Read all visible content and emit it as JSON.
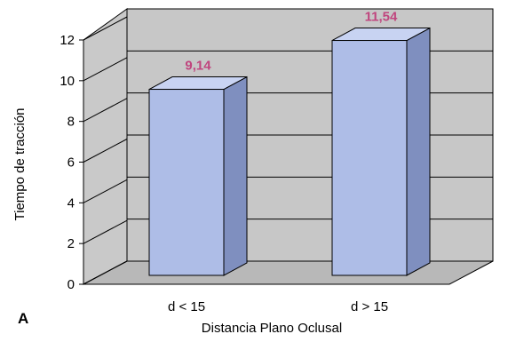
{
  "panel_label": "A",
  "colors": {
    "bar_front": "#aebde7",
    "bar_side": "#7f8fbf",
    "bar_top": "#c8d3f2",
    "wall": "#c7c7c7",
    "floor": "#b8b8b8",
    "data_label": "#c0457e"
  },
  "chart_data": {
    "type": "bar",
    "title": "",
    "xlabel": "Distancia Plano Oclusal",
    "ylabel": "Tiempo de tracción",
    "categories": [
      "d < 15",
      "d > 15"
    ],
    "values": [
      9.14,
      11.54
    ],
    "value_labels": [
      "9,14",
      "11,54"
    ],
    "ylim": [
      0,
      12
    ],
    "yticks": [
      0,
      2,
      4,
      6,
      8,
      10,
      12
    ],
    "grid": true,
    "legend": "none",
    "style": "3d"
  }
}
